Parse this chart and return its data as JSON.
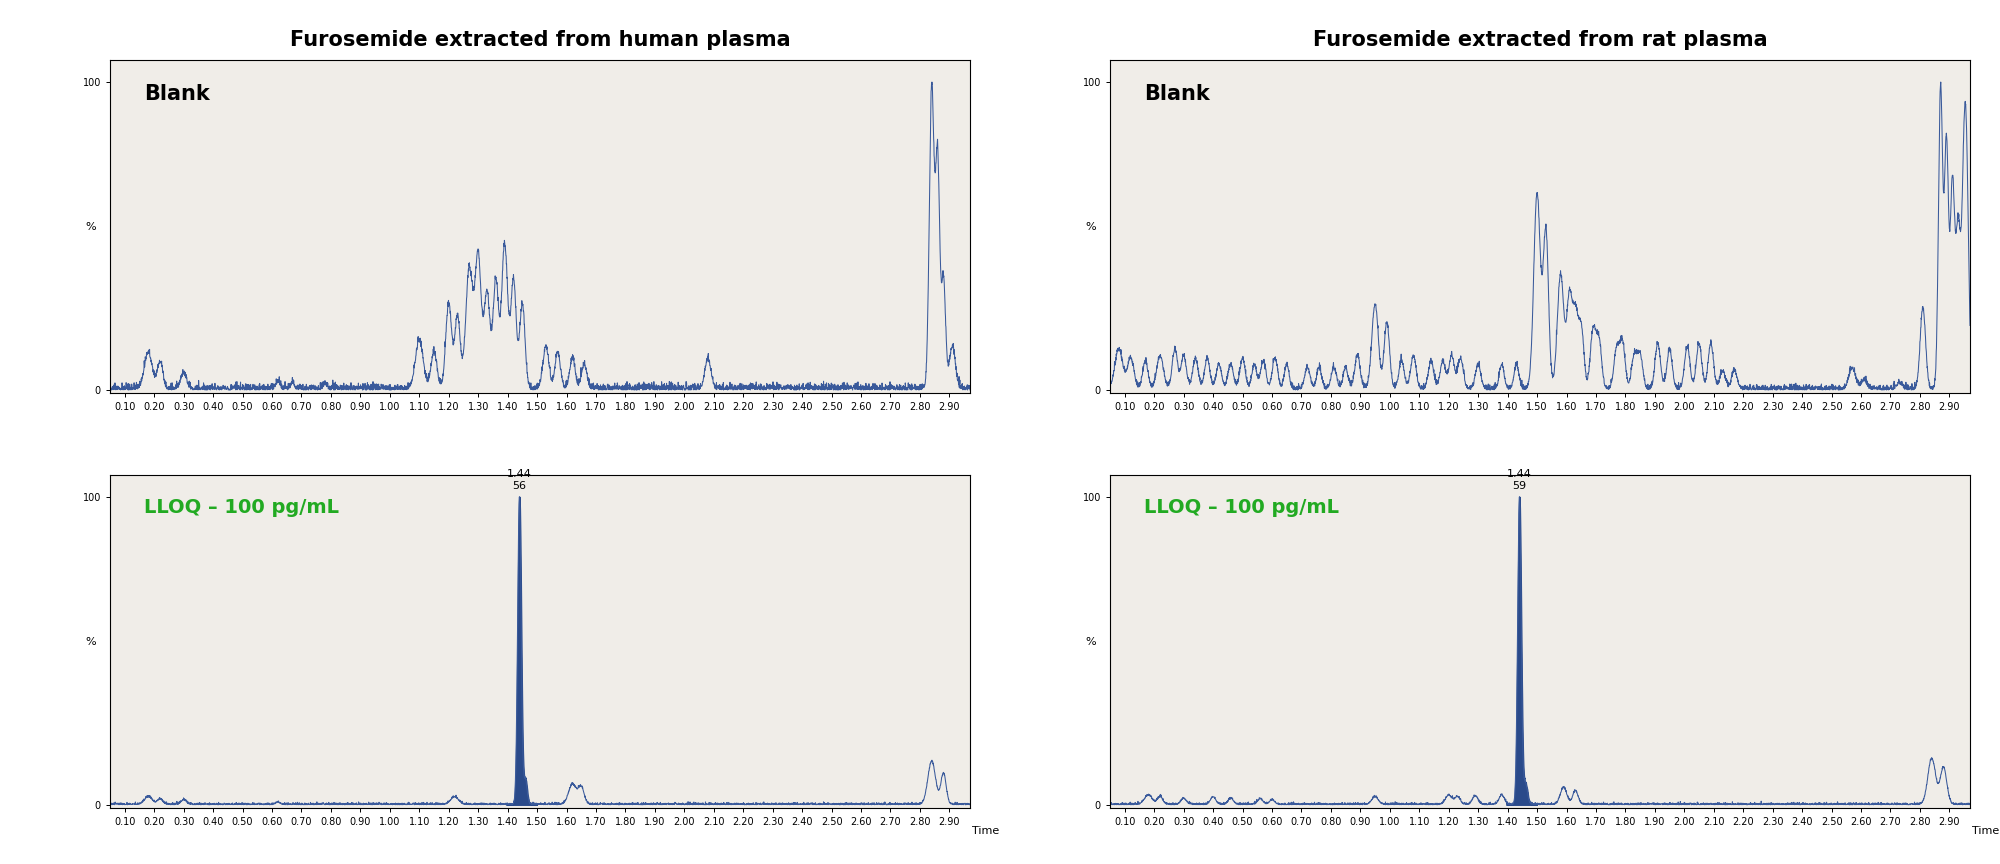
{
  "title_human": "Furosemide extracted from human plasma",
  "title_rat": "Furosemide extracted from rat plasma",
  "blank_label": "Blank",
  "lloq_label": "LLOQ – 100 pg/mL",
  "peak_annotation_human": "1.44\n56",
  "peak_annotation_rat": "1.44\n59",
  "time_label": "Time",
  "y_label": "%",
  "x_min": 0.05,
  "x_max": 2.97,
  "x_ticks": [
    0.1,
    0.2,
    0.3,
    0.4,
    0.5,
    0.6,
    0.7,
    0.8,
    0.9,
    1.0,
    1.1,
    1.2,
    1.3,
    1.4,
    1.5,
    1.6,
    1.7,
    1.8,
    1.9,
    2.0,
    2.1,
    2.2,
    2.3,
    2.4,
    2.5,
    2.6,
    2.7,
    2.8,
    2.9
  ],
  "x_tick_labels": [
    "0.10",
    "0.20",
    "0.30",
    "0.40",
    "0.50",
    "0.60",
    "0.70",
    "0.80",
    "0.90",
    "1.00",
    "1.10",
    "1.20",
    "1.30",
    "1.40",
    "1.50",
    "1.60",
    "1.70",
    "1.80",
    "1.90",
    "2.00",
    "2.10",
    "2.20",
    "2.30",
    "2.40",
    "2.50",
    "2.60",
    "2.70",
    "2.80",
    "2.90"
  ],
  "line_color": "#3a5a9b",
  "fill_color": "#2a4a8a",
  "lloq_text_color": "#22aa22",
  "bg_color": "#ffffff",
  "plot_bg_color": "#f0ede8",
  "title_fontsize": 15,
  "blank_fontsize": 15,
  "lloq_fontsize": 14,
  "tick_fontsize": 7,
  "annotation_fontsize": 8
}
